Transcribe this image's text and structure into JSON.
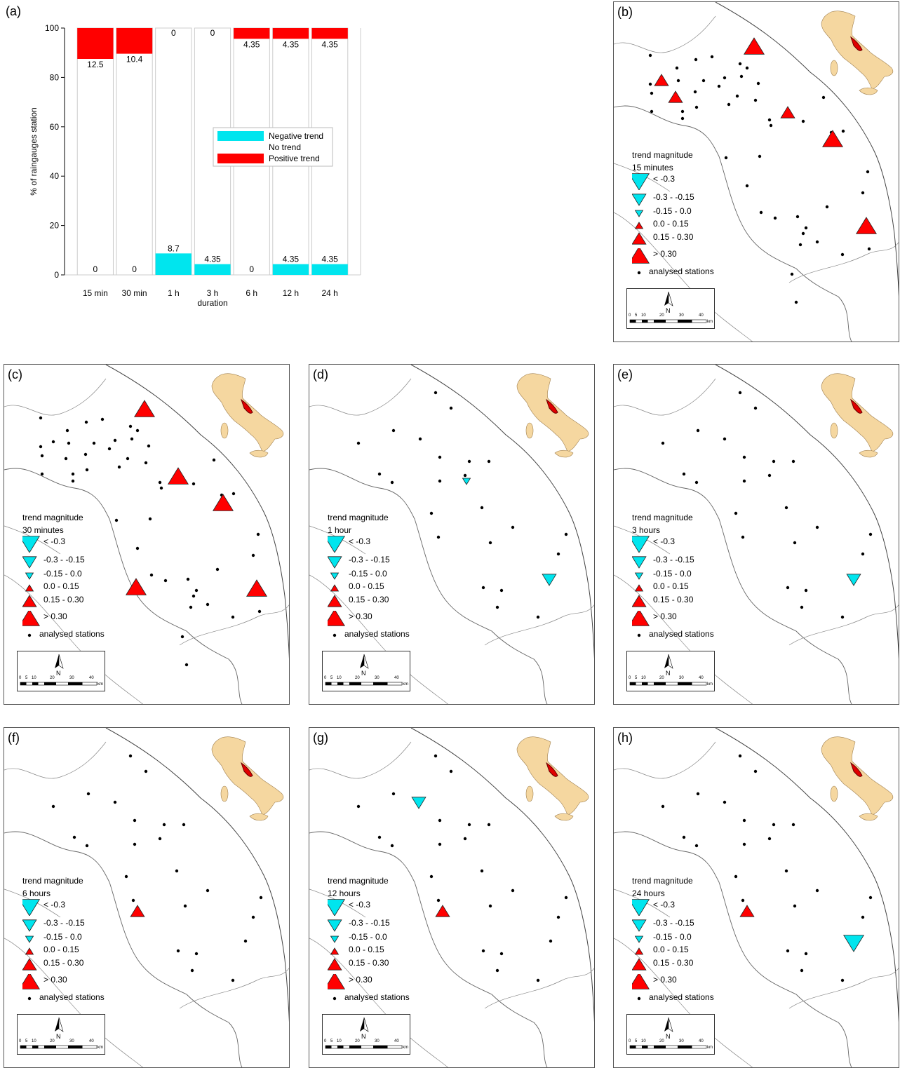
{
  "colors": {
    "positive": "#ff0000",
    "negative": "#00e5ee",
    "station": "#000000",
    "italy": "#f5d7a0",
    "study_area": "#e00000"
  },
  "icons": [
    "triangle-up-icon",
    "triangle-down-icon",
    "north-arrow-icon",
    "italy-locator-map-icon"
  ],
  "chart_data": {
    "type": "bar",
    "panel_label": "(a)",
    "categories": [
      "15 min",
      "30 min",
      "1 h",
      "3 h",
      "6 h",
      "12 h",
      "24 h"
    ],
    "series": [
      {
        "name": "Negative trend",
        "values": [
          0,
          0,
          8.7,
          4.35,
          0,
          4.35,
          4.35
        ],
        "labels": [
          "0",
          "0",
          "8.7",
          "4.35",
          "0",
          "4.35",
          "4.35"
        ]
      },
      {
        "name": "No trend",
        "values": [
          87.5,
          89.6,
          91.3,
          95.65,
          95.65,
          91.3,
          91.3
        ]
      },
      {
        "name": "Positive trend",
        "values": [
          12.5,
          10.4,
          0,
          0,
          4.35,
          4.35,
          4.35
        ],
        "labels": [
          "12.5",
          "10.4",
          "0",
          "0",
          "4.35",
          "4.35",
          "4.35"
        ]
      }
    ],
    "stacked": true,
    "xlabel": "duration",
    "ylabel": "% of raingauges station",
    "ylim": [
      0,
      100
    ],
    "yticks": [
      0,
      20,
      40,
      60,
      80,
      100
    ],
    "legend_position": "center-right"
  },
  "map_legend_items": [
    "< -0.3",
    "-0.3 - -0.15",
    "-0.15 - 0.0",
    "0.0 - 0.15",
    "0.15 - 0.30",
    "> 0.30",
    "analysed stations"
  ],
  "scale_labels": [
    "0",
    "5",
    "10",
    "20",
    "30",
    "40"
  ],
  "scale_unit": "km",
  "north_label": "N",
  "legend_title": "trend magnitude",
  "panels": [
    {
      "letter": "(b)",
      "duration": "15 minutes"
    },
    {
      "letter": "(c)",
      "duration": "30 minutes"
    },
    {
      "letter": "(d)",
      "duration": "1 hour"
    },
    {
      "letter": "(e)",
      "duration": "3 hours"
    },
    {
      "letter": "(f)",
      "duration": "6 hours"
    },
    {
      "letter": "(g)",
      "duration": "12 hours"
    },
    {
      "letter": "(h)",
      "duration": "24 hours"
    }
  ]
}
